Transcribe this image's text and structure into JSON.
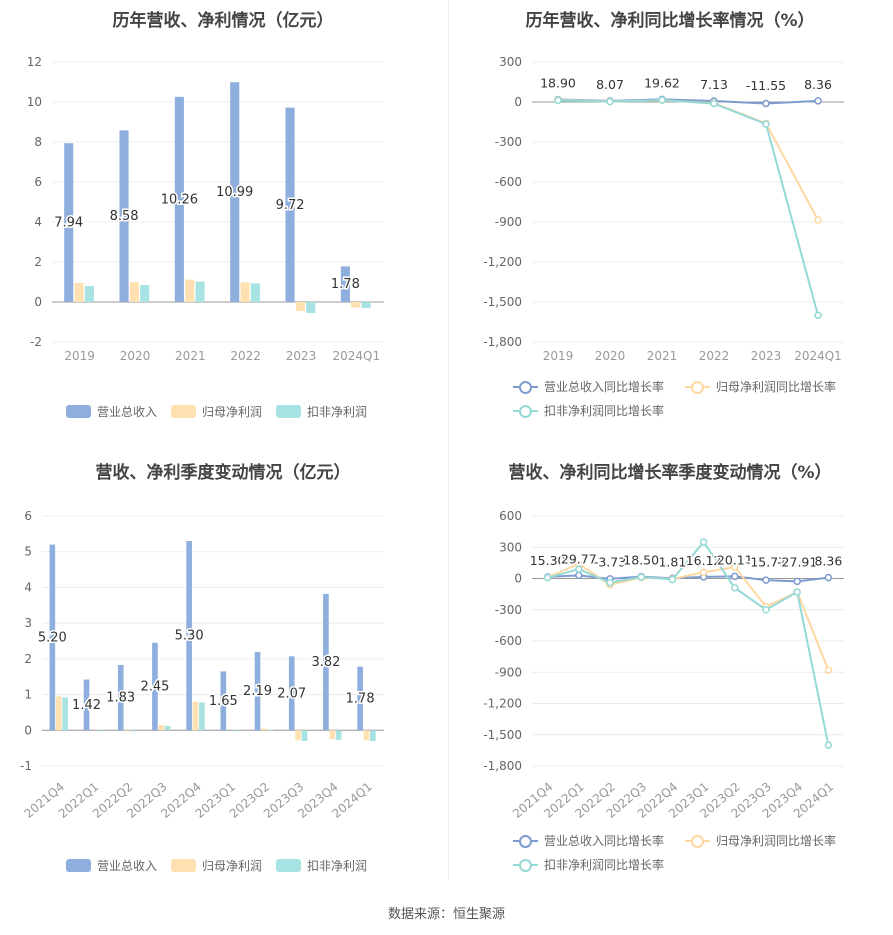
{
  "source_label": "数据来源：恒生聚源",
  "colors": {
    "revenue": "#8eaedd",
    "net_profit": "#ffe0b0",
    "deducted_profit": "#a7e3e2",
    "revenue_line": "#7d9bcf",
    "net_line": "#ffd8a1",
    "deducted_line": "#94d9d6"
  },
  "chart_data": [
    {
      "type": "bar",
      "title": "历年营收、净利情况（亿元）",
      "categories": [
        "2019",
        "2020",
        "2021",
        "2022",
        "2023",
        "2024Q1"
      ],
      "ylim": [
        -2,
        12
      ],
      "yticks": [
        -2,
        0,
        2,
        4,
        6,
        8,
        10,
        12
      ],
      "series": [
        {
          "name": "营业总收入",
          "values": [
            7.94,
            8.58,
            10.26,
            10.99,
            9.72,
            1.78
          ],
          "labels": [
            "7.94",
            "8.58",
            "10.26",
            "10.99",
            "9.72",
            "1.78"
          ]
        },
        {
          "name": "归母净利润",
          "values": [
            0.95,
            1.0,
            1.12,
            0.98,
            -0.45,
            -0.28
          ]
        },
        {
          "name": "扣非净利润",
          "values": [
            0.8,
            0.85,
            1.02,
            0.93,
            -0.55,
            -0.3
          ]
        }
      ],
      "legend": "bottom"
    },
    {
      "type": "line",
      "title": "历年营收、净利同比增长率情况（%）",
      "categories": [
        "2019",
        "2020",
        "2021",
        "2022",
        "2023",
        "2024Q1"
      ],
      "ylim": [
        -1800,
        300
      ],
      "yticks": [
        300,
        0,
        -300,
        -600,
        -900,
        -1200,
        -1500,
        -1800
      ],
      "ytick_labels": [
        "300",
        "0",
        "-300",
        "-600",
        "-900",
        "-1,200",
        "-1,500",
        "-1,800"
      ],
      "series": [
        {
          "name": "营业总收入同比增长率",
          "values": [
            18.9,
            8.07,
            19.62,
            7.13,
            -11.55,
            8.36
          ],
          "labels": [
            "18.90",
            "8.07",
            "19.62",
            "7.13",
            "-11.55",
            "8.36"
          ]
        },
        {
          "name": "归母净利润同比增长率",
          "values": [
            15,
            5,
            12,
            -8,
            -160,
            -885
          ]
        },
        {
          "name": "扣非净利润同比增长率",
          "values": [
            12,
            3,
            15,
            -12,
            -165,
            -1600
          ]
        }
      ],
      "legend": "bottom"
    },
    {
      "type": "bar",
      "title": "营收、净利季度变动情况（亿元）",
      "categories": [
        "2021Q4",
        "2022Q1",
        "2022Q2",
        "2022Q3",
        "2022Q4",
        "2023Q1",
        "2023Q2",
        "2023Q3",
        "2023Q4",
        "2024Q1"
      ],
      "ylim": [
        -1,
        6
      ],
      "yticks": [
        -1,
        0,
        1,
        2,
        3,
        4,
        5,
        6
      ],
      "series": [
        {
          "name": "营业总收入",
          "values": [
            5.2,
            1.42,
            1.83,
            2.45,
            5.3,
            1.65,
            2.19,
            2.07,
            3.82,
            1.78
          ],
          "labels": [
            "5.20",
            "1.42",
            "1.83",
            "2.45",
            "5.30",
            "1.65",
            "2.19",
            "2.07",
            "3.82",
            "1.78"
          ]
        },
        {
          "name": "归母净利润",
          "values": [
            0.95,
            0.0,
            -0.02,
            0.15,
            0.8,
            0.0,
            0.05,
            -0.28,
            -0.25,
            -0.28
          ]
        },
        {
          "name": "扣非净利润",
          "values": [
            0.92,
            -0.02,
            -0.03,
            0.12,
            0.78,
            -0.02,
            0.02,
            -0.3,
            -0.27,
            -0.3
          ]
        }
      ],
      "legend": "bottom"
    },
    {
      "type": "line",
      "title": "营收、净利同比增长率季度变动情况（%）",
      "categories": [
        "2021Q4",
        "2022Q1",
        "2022Q2",
        "2022Q3",
        "2022Q4",
        "2023Q1",
        "2023Q2",
        "2023Q3",
        "2023Q4",
        "2024Q1"
      ],
      "ylim": [
        -1800,
        600
      ],
      "yticks": [
        600,
        300,
        0,
        -300,
        -600,
        -900,
        -1200,
        -1500,
        -1800
      ],
      "ytick_labels": [
        "600",
        "300",
        "0",
        "-300",
        "-600",
        "-900",
        "-1,200",
        "-1,500",
        "-1,800"
      ],
      "series": [
        {
          "name": "营业总收入同比增长率",
          "values": [
            15.3,
            29.77,
            -3.73,
            18.5,
            1.81,
            16.12,
            20.11,
            -15.77,
            -27.91,
            8.36
          ],
          "labels": [
            "15.30",
            "29.77",
            "-3.73",
            "18.50",
            "1.81",
            "16.12",
            "20.11",
            "-15.77",
            "-27.91",
            "8.36"
          ]
        },
        {
          "name": "归母净利润同比增长率",
          "values": [
            10,
            140,
            -60,
            10,
            -5,
            60,
            110,
            -270,
            -130,
            -880
          ]
        },
        {
          "name": "扣非净利润同比增长率",
          "values": [
            8,
            90,
            -40,
            15,
            -10,
            350,
            -90,
            -300,
            -130,
            -1600
          ]
        }
      ],
      "legend": "bottom"
    }
  ]
}
